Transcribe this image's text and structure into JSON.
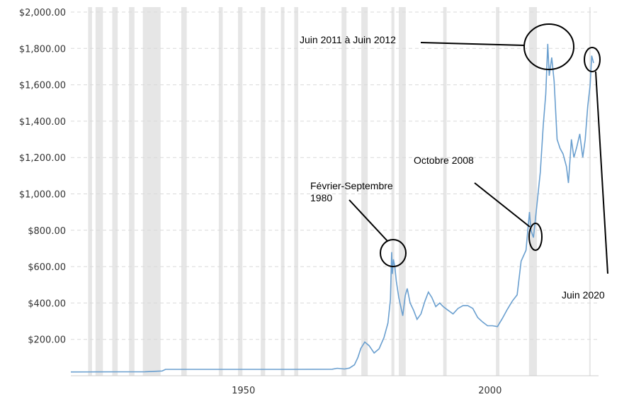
{
  "chart_data": {
    "type": "line",
    "title": "",
    "xlabel": "",
    "ylabel": "",
    "xlim": [
      1915,
      2022
    ],
    "ylim": [
      0,
      2000
    ],
    "grid": true,
    "y_ticks": [
      {
        "value": 200,
        "label": "$200.00"
      },
      {
        "value": 400,
        "label": "$400.00"
      },
      {
        "value": 600,
        "label": "$600.00"
      },
      {
        "value": 800,
        "label": "$800.00"
      },
      {
        "value": 1000,
        "label": "$1,000.00"
      },
      {
        "value": 1200,
        "label": "$1,200.00"
      },
      {
        "value": 1400,
        "label": "$1,400.00"
      },
      {
        "value": 1600,
        "label": "$1,600.00"
      },
      {
        "value": 1800,
        "label": "$1,800.00"
      },
      {
        "value": 2000,
        "label": "$2,000.00"
      }
    ],
    "x_ticks": [
      {
        "value": 1950,
        "label": "1950"
      },
      {
        "value": 2000,
        "label": "2000"
      }
    ],
    "shaded_periods": [
      [
        1918.5,
        1919.3
      ],
      [
        1920.0,
        1921.5
      ],
      [
        1923.4,
        1924.5
      ],
      [
        1926.8,
        1927.9
      ],
      [
        1929.6,
        1933.2
      ],
      [
        1937.4,
        1938.5
      ],
      [
        1945.0,
        1945.8
      ],
      [
        1948.9,
        1949.8
      ],
      [
        1953.5,
        1954.4
      ],
      [
        1957.6,
        1958.3
      ],
      [
        1960.3,
        1961.1
      ],
      [
        1969.9,
        1970.9
      ],
      [
        1973.9,
        1975.2
      ],
      [
        1980.0,
        1980.6
      ],
      [
        1981.5,
        1982.9
      ],
      [
        1990.5,
        1991.2
      ],
      [
        2001.2,
        2001.9
      ],
      [
        2007.9,
        2009.5
      ],
      [
        2020.1,
        2020.4
      ]
    ],
    "series": [
      {
        "color": "#6a9fcf",
        "points": [
          [
            1915,
            20.7
          ],
          [
            1920,
            21.0
          ],
          [
            1925,
            21.5
          ],
          [
            1930,
            21.8
          ],
          [
            1933.5,
            26
          ],
          [
            1934.2,
            35
          ],
          [
            1940,
            35
          ],
          [
            1950,
            35
          ],
          [
            1960,
            35
          ],
          [
            1968,
            36
          ],
          [
            1969,
            41
          ],
          [
            1970.5,
            37
          ],
          [
            1971.5,
            42
          ],
          [
            1972.5,
            60
          ],
          [
            1973.2,
            100
          ],
          [
            1973.8,
            150
          ],
          [
            1974.6,
            185
          ],
          [
            1975.5,
            165
          ],
          [
            1976.5,
            125
          ],
          [
            1977.5,
            148
          ],
          [
            1978.5,
            210
          ],
          [
            1979.3,
            290
          ],
          [
            1979.8,
            420
          ],
          [
            1980.05,
            680
          ],
          [
            1980.2,
            560
          ],
          [
            1980.4,
            640
          ],
          [
            1980.7,
            600
          ],
          [
            1981.0,
            520
          ],
          [
            1981.5,
            430
          ],
          [
            1982.3,
            330
          ],
          [
            1982.8,
            440
          ],
          [
            1983.2,
            480
          ],
          [
            1983.8,
            400
          ],
          [
            1984.5,
            360
          ],
          [
            1985.2,
            310
          ],
          [
            1986.0,
            340
          ],
          [
            1986.8,
            410
          ],
          [
            1987.5,
            460
          ],
          [
            1988.2,
            430
          ],
          [
            1989.0,
            380
          ],
          [
            1989.8,
            400
          ],
          [
            1990.5,
            380
          ],
          [
            1991.5,
            360
          ],
          [
            1992.5,
            340
          ],
          [
            1993.5,
            370
          ],
          [
            1994.5,
            385
          ],
          [
            1995.5,
            385
          ],
          [
            1996.5,
            370
          ],
          [
            1997.5,
            320
          ],
          [
            1998.5,
            295
          ],
          [
            1999.5,
            275
          ],
          [
            2000.5,
            275
          ],
          [
            2001.5,
            270
          ],
          [
            2002.5,
            315
          ],
          [
            2003.5,
            365
          ],
          [
            2004.5,
            410
          ],
          [
            2005.5,
            445
          ],
          [
            2006.3,
            630
          ],
          [
            2007.3,
            690
          ],
          [
            2008.0,
            900
          ],
          [
            2008.3,
            800
          ],
          [
            2008.8,
            760
          ],
          [
            2009.5,
            940
          ],
          [
            2010.2,
            1120
          ],
          [
            2010.8,
            1380
          ],
          [
            2011.3,
            1550
          ],
          [
            2011.7,
            1825
          ],
          [
            2012.0,
            1650
          ],
          [
            2012.5,
            1750
          ],
          [
            2013.0,
            1620
          ],
          [
            2013.6,
            1300
          ],
          [
            2014.2,
            1250
          ],
          [
            2014.8,
            1220
          ],
          [
            2015.5,
            1150
          ],
          [
            2015.9,
            1060
          ],
          [
            2016.5,
            1300
          ],
          [
            2017.0,
            1200
          ],
          [
            2017.6,
            1260
          ],
          [
            2018.2,
            1330
          ],
          [
            2018.8,
            1200
          ],
          [
            2019.3,
            1300
          ],
          [
            2019.8,
            1480
          ],
          [
            2020.3,
            1600
          ],
          [
            2020.6,
            1760
          ],
          [
            2021.0,
            1720
          ]
        ]
      }
    ],
    "annotations": [
      {
        "lines": [
          "Février-Septembre",
          "1980"
        ],
        "x": 1980.1,
        "y": 650
      },
      {
        "lines": [
          "Octobre 2008"
        ],
        "x": 2008.4,
        "y": 750
      },
      {
        "lines": [
          "Juin 2011 à Juin 2012"
        ],
        "x": 2011.9,
        "y": 1780
      },
      {
        "lines": [
          "Juin 2020"
        ],
        "x": 2020.6,
        "y": 1720
      }
    ]
  }
}
